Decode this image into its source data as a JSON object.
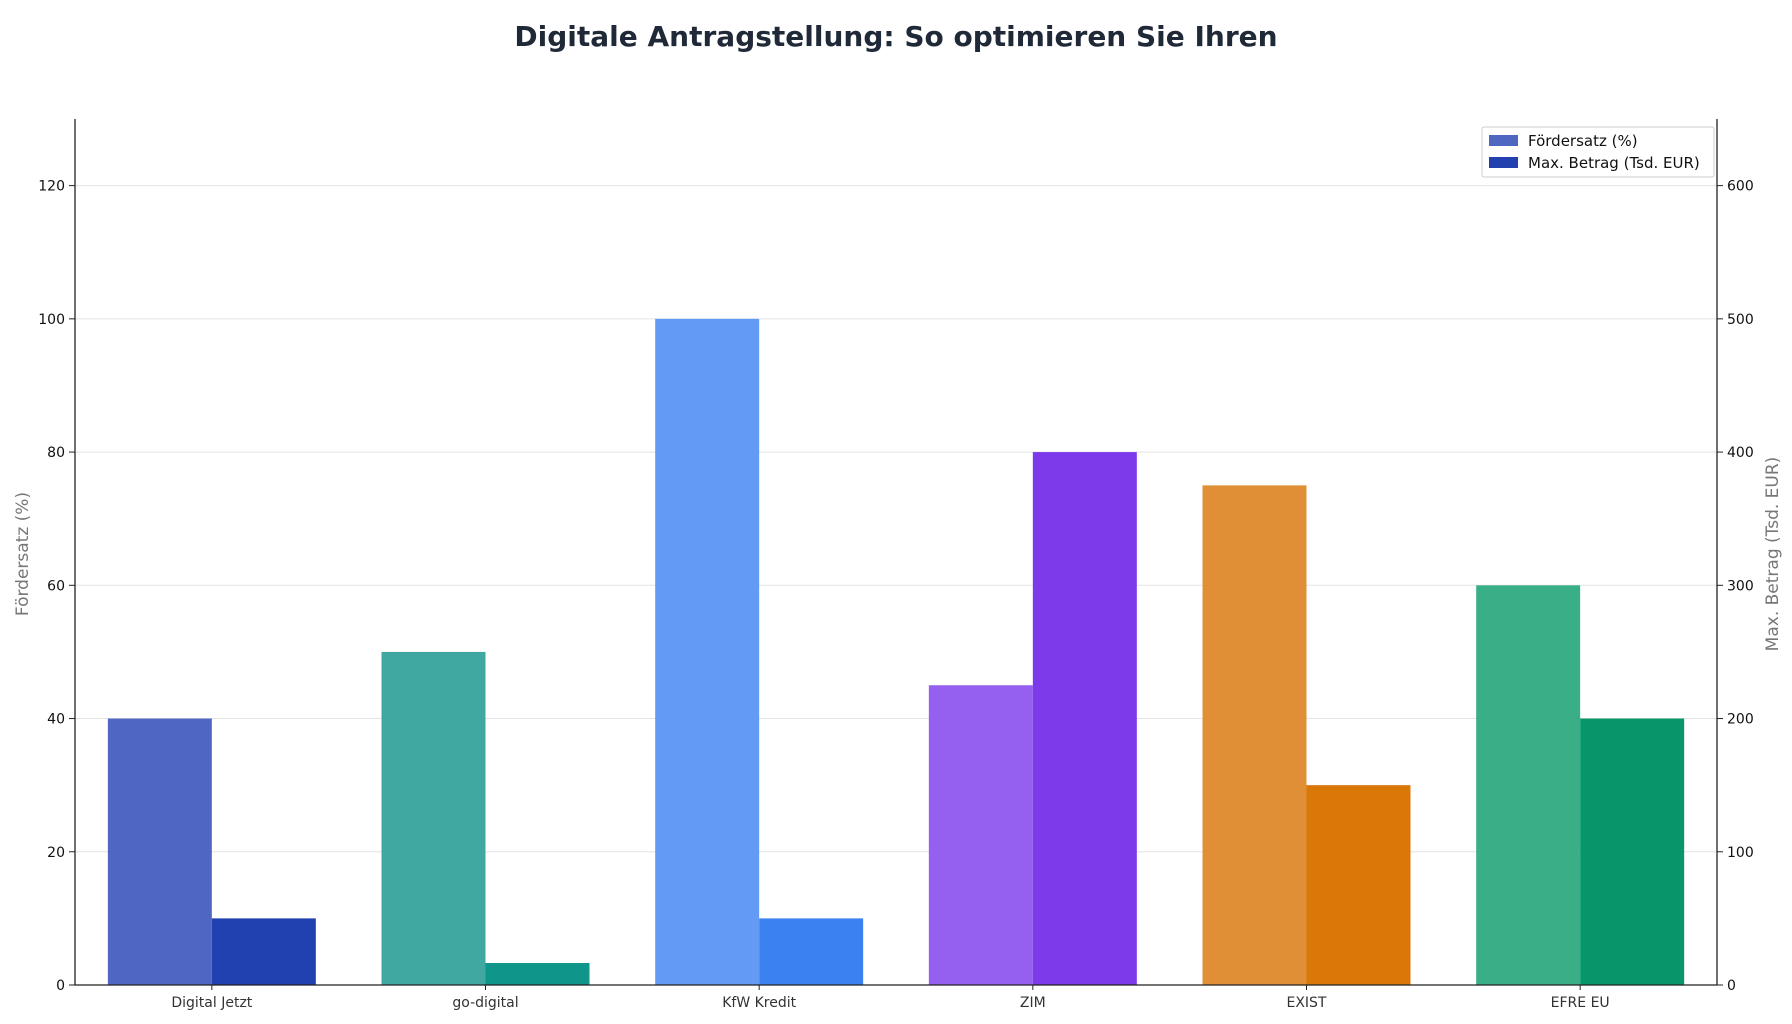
{
  "chart_data": {
    "type": "bar",
    "title": "Digitale Antragstellung: So optimieren Sie Ihren",
    "categories": [
      "Digital Jetzt",
      "go-digital",
      "KfW Kredit",
      "ZIM",
      "EXIST",
      "EFRE EU"
    ],
    "series": [
      {
        "name": "Fördersatz (%)",
        "axis": "left",
        "values": [
          40,
          50,
          100,
          45,
          75,
          60
        ],
        "colors": [
          "#4f67c1",
          "#40a8a0",
          "#639af6",
          "#9560ef",
          "#e08f36",
          "#3aae87"
        ]
      },
      {
        "name": "Max. Betrag (Tsd. EUR)",
        "axis": "right",
        "values": [
          50,
          16.5,
          50,
          400,
          150,
          200
        ],
        "colors": [
          "#2241b0",
          "#0f958a",
          "#3b82f0",
          "#7c3aeb",
          "#d97708",
          "#069669"
        ]
      }
    ],
    "ylabel_left": "Fördersatz (%)",
    "ylabel_right": "Max. Betrag (Tsd. EUR)",
    "ylim_left": [
      0,
      130
    ],
    "ylim_right": [
      0,
      650
    ],
    "yticks_left": [
      "0",
      "20",
      "40",
      "60",
      "80",
      "100",
      "120"
    ],
    "yticks_right": [
      "0",
      "100",
      "200",
      "300",
      "400",
      "500",
      "600"
    ],
    "grid": true,
    "legend_position": "top-right",
    "legend_colors": [
      "#4f67c1",
      "#2241b0"
    ]
  }
}
